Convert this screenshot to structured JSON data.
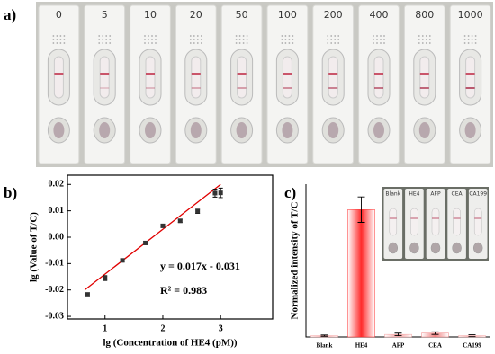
{
  "panel_a": {
    "panel_label": "a)",
    "strip_labels": [
      "0",
      "5",
      "10",
      "20",
      "50",
      "100",
      "200",
      "400",
      "800",
      "1000"
    ]
  },
  "chart_data": [
    {
      "type": "scatter",
      "panel_label": "b)",
      "x_label": "lg (Concentration of HE4 (pM))",
      "y_label": "lg (Value of T/C)",
      "x": [
        0.699,
        1.0,
        1.301,
        1.699,
        2.0,
        2.301,
        2.602,
        2.903,
        3.0
      ],
      "values": [
        -0.0218,
        -0.0155,
        -0.0088,
        -0.0022,
        0.0043,
        0.0062,
        0.0098,
        0.0167,
        0.0168
      ],
      "errors": [
        0.0008,
        0.0009,
        0.0006,
        0.0006,
        0.0006,
        0.0006,
        0.0008,
        0.0015,
        0.0018
      ],
      "color": "#333333",
      "fit": {
        "slope": 0.017,
        "intercept": -0.031,
        "color": "#e00000"
      },
      "annotations": [
        "y = 0.017x - 0.031",
        "R² = 0.983"
      ],
      "xlim": [
        0.35,
        3.9
      ],
      "ylim": [
        -0.031,
        0.0235
      ],
      "xticks": [
        1,
        2,
        3
      ],
      "yticks": [
        -0.03,
        -0.02,
        -0.01,
        {
          "value": 0,
          "label": "0.00"
        },
        0.01,
        0.02
      ]
    },
    {
      "type": "bar",
      "panel_label": "c)",
      "y_label": "Normalized intensity of T/C",
      "categories": [
        "Blank",
        "HE4",
        "AFP",
        "CEA",
        "CA199"
      ],
      "values": [
        0.01,
        1.0,
        0.02,
        0.03,
        0.01
      ],
      "errors": [
        0.005,
        0.1,
        0.01,
        0.01,
        0.008
      ],
      "colors": [
        "#f4a0a0",
        "#ff2a2a",
        "#f4a0a0",
        "#f08080",
        "#f4a0a0"
      ],
      "ylim": [
        0,
        1.2
      ]
    }
  ]
}
